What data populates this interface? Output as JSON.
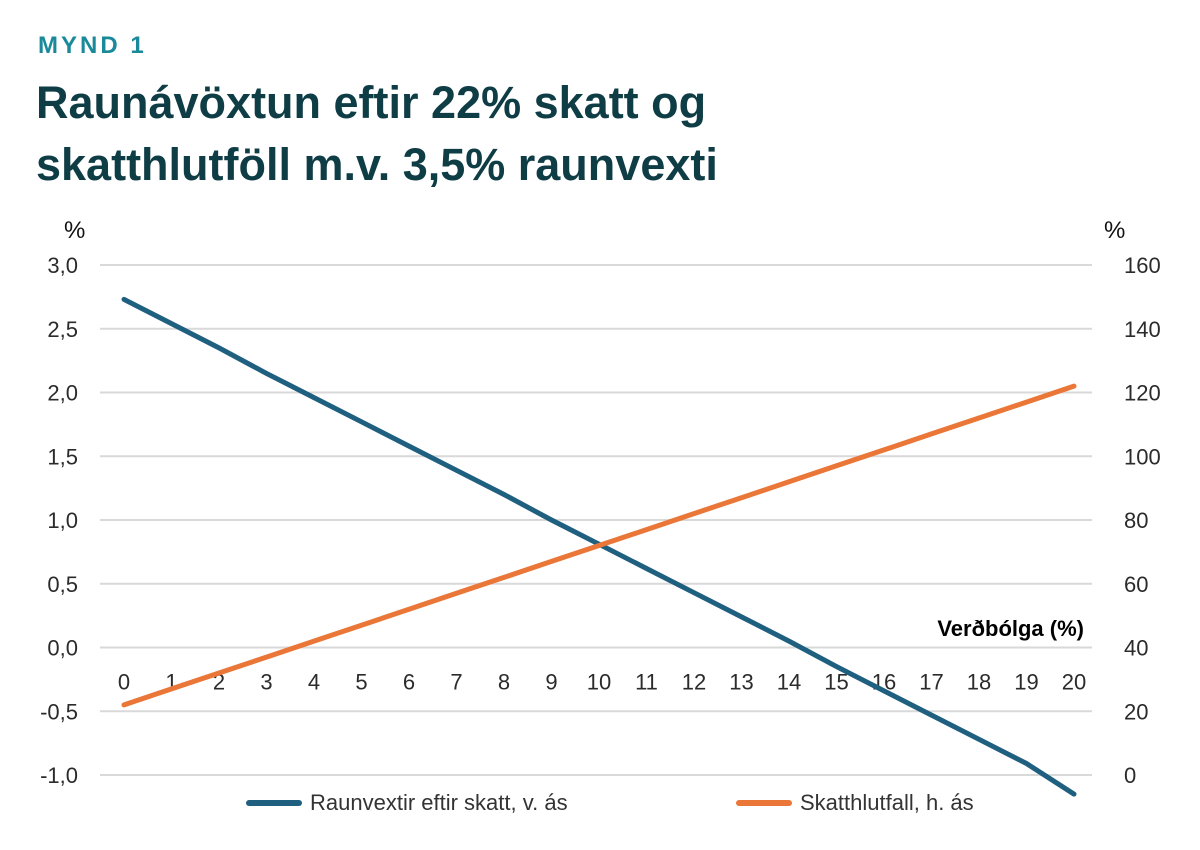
{
  "header": {
    "kicker": "MYND 1",
    "title_line1": "Raunávöxtun eftir 22% skatt og",
    "title_line2": "skatthlutföll m.v. 3,5% raunvexti"
  },
  "colors": {
    "series1": "#1f5f7f",
    "series2": "#ea7638",
    "grid": "#d9d9d9",
    "title": "#0f3d45",
    "kicker": "#1a8a9a"
  },
  "chart_data": {
    "type": "line",
    "xlabel": "Verðbólga (%)",
    "left_axis_unit": "%",
    "right_axis_unit": "%",
    "x": [
      0,
      1,
      2,
      3,
      4,
      5,
      6,
      7,
      8,
      9,
      10,
      11,
      12,
      13,
      14,
      15,
      16,
      17,
      18,
      19,
      20
    ],
    "x_tick_labels": [
      "0",
      "1",
      "2",
      "3",
      "4",
      "5",
      "6",
      "7",
      "8",
      "9",
      "10",
      "11",
      "12",
      "13",
      "14",
      "15",
      "16",
      "17",
      "18",
      "19",
      "20"
    ],
    "ylim_left": [
      -1.0,
      3.0
    ],
    "ylim_right": [
      0,
      160
    ],
    "left_tick_values": [
      3.0,
      2.5,
      2.0,
      1.5,
      1.0,
      0.5,
      0.0,
      -0.5,
      -1.0
    ],
    "left_tick_labels": [
      "3,0",
      "2,5",
      "2,0",
      "1,5",
      "1,0",
      "0,5",
      "0,0",
      "-0,5",
      "-1,0"
    ],
    "right_tick_values": [
      160,
      140,
      120,
      100,
      80,
      60,
      40,
      20,
      0
    ],
    "right_tick_labels": [
      "160",
      "140",
      "120",
      "100",
      "80",
      "60",
      "40",
      "20",
      "0"
    ],
    "grid": true,
    "legend_position": "bottom",
    "series": [
      {
        "name": "Raunvextir eftir skatt, v. ás",
        "axis": "left",
        "values": [
          2.73,
          2.54,
          2.35,
          2.15,
          1.96,
          1.77,
          1.58,
          1.39,
          1.2,
          1.0,
          0.81,
          0.62,
          0.43,
          0.24,
          0.05,
          -0.15,
          -0.34,
          -0.53,
          -0.72,
          -0.91,
          -1.15
        ]
      },
      {
        "name": "Skatthlutfall, h. ás",
        "axis": "right",
        "values": [
          22,
          27,
          32,
          37,
          42,
          47,
          52,
          57,
          62,
          67,
          72,
          77,
          82,
          87,
          92,
          97,
          102,
          107,
          112,
          117,
          122
        ]
      }
    ]
  }
}
